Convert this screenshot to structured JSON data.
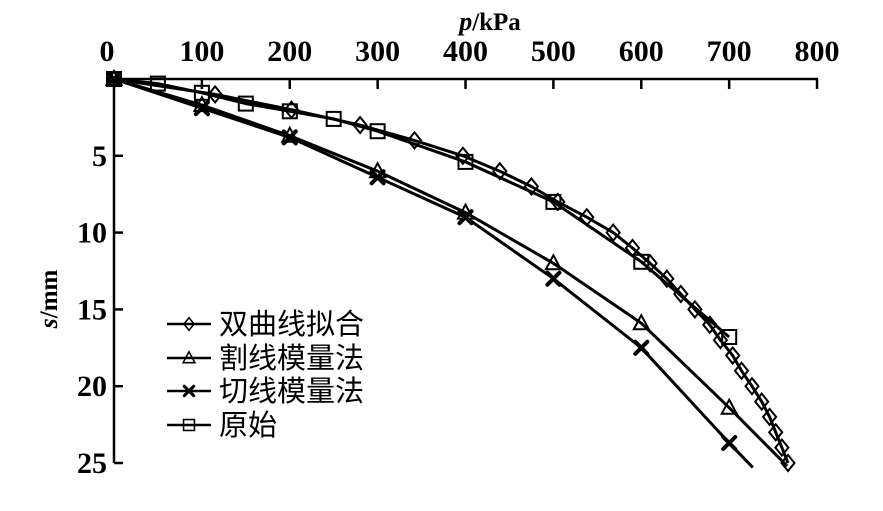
{
  "figure": {
    "background_color": "#ffffff",
    "ink_color": "#000000"
  },
  "chart_data": {
    "type": "line",
    "title": "",
    "xlabel": "p/kPa",
    "xlabel_var": "p",
    "xlabel_rest": "/kPa",
    "ylabel": "s/mm",
    "ylabel_var": "s",
    "ylabel_rest": "/mm",
    "x_axis": {
      "position": "top",
      "min": 0,
      "max": 800,
      "ticks": [
        0,
        100,
        200,
        300,
        400,
        500,
        600,
        700,
        800
      ]
    },
    "y_axis": {
      "position": "left",
      "min": 0,
      "max": 25,
      "direction": "downward",
      "ticks": [
        5,
        10,
        15,
        20,
        25
      ]
    },
    "grid": false,
    "legend": {
      "position": "inside-left-middle",
      "entries": [
        "双曲线拟合",
        "割线模量法",
        "切线模量法",
        "原始"
      ]
    },
    "series": [
      {
        "key": "hyperbolic-fit",
        "name": "双曲线拟合",
        "marker": "diamond",
        "p": [
          0,
          115,
          202,
          280,
          342,
          397,
          439,
          475,
          505,
          538,
          568,
          590,
          610,
          629,
          645,
          661,
          678,
          690,
          704,
          714,
          726,
          737,
          746,
          753,
          760,
          767
        ],
        "s": [
          0,
          1,
          2,
          3,
          4,
          5,
          6,
          7,
          8,
          9,
          10,
          11,
          12,
          13,
          14,
          15,
          16,
          17,
          18,
          19,
          20,
          21,
          22,
          23,
          24,
          25
        ]
      },
      {
        "key": "secant-modulus",
        "name": "割线模量法",
        "marker": "triangle",
        "p": [
          0,
          100,
          200,
          300,
          400,
          500,
          600,
          700
        ],
        "s": [
          0,
          1.7,
          3.7,
          6.0,
          8.7,
          12.0,
          15.9,
          21.4
        ],
        "tail": {
          "p": 766,
          "s": 25.2
        }
      },
      {
        "key": "tangent-modulus",
        "name": "切线模量法",
        "marker": "x",
        "p": [
          0,
          100,
          200,
          300,
          400,
          500,
          600,
          700
        ],
        "s": [
          0,
          1.9,
          3.8,
          6.4,
          9.0,
          13.0,
          17.5,
          23.7
        ],
        "tail": {
          "p": 727,
          "s": 25.3
        }
      },
      {
        "key": "original",
        "name": "原始",
        "marker": "square",
        "p": [
          0,
          50,
          100,
          150,
          200,
          250,
          300,
          400,
          500,
          600,
          700
        ],
        "s": [
          0,
          0.3,
          0.9,
          1.6,
          2.1,
          2.6,
          3.4,
          5.4,
          8.0,
          11.9,
          16.8
        ]
      }
    ]
  }
}
